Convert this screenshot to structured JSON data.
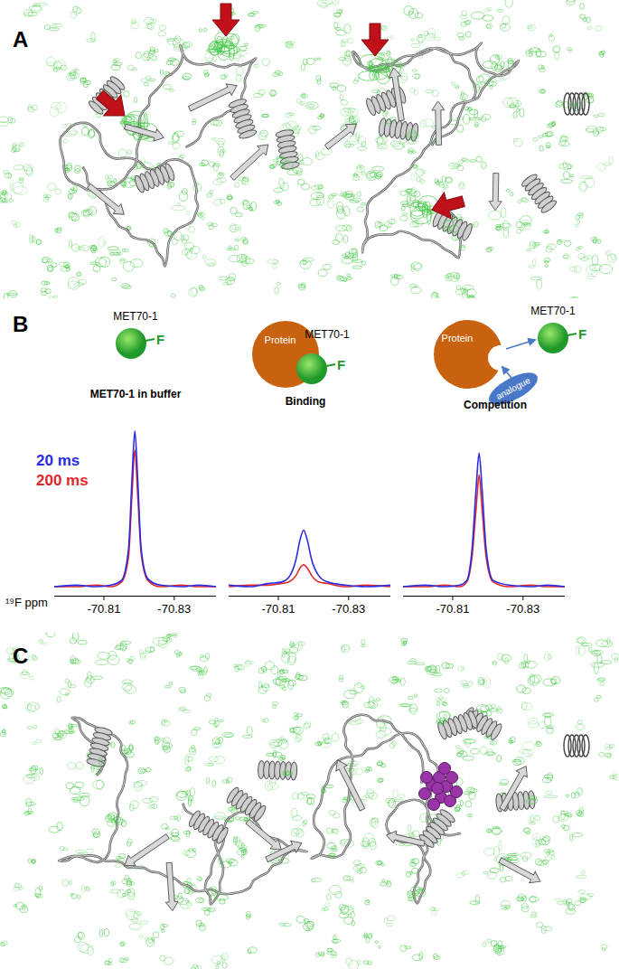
{
  "panel_labels": [
    "A",
    "B",
    "C"
  ],
  "chart_data": [
    {
      "type": "line",
      "title": "MET70-1 in buffer",
      "x_label": "¹⁹F ppm",
      "legend": "left",
      "tick_labels": "x",
      "x": [
        -70.796,
        -70.802,
        -70.808,
        -70.812,
        -70.815,
        -70.817,
        -70.818,
        -70.8188,
        -70.8196,
        -70.8206,
        -70.8225,
        -70.826,
        -70.832,
        -70.837,
        -70.842
      ],
      "series": [
        {
          "name": "20 ms",
          "color": "#2a2ae0",
          "values": [
            1,
            2,
            1,
            2,
            5,
            25,
            70,
            100,
            70,
            25,
            6,
            2,
            1,
            2,
            1
          ]
        },
        {
          "name": "200 ms",
          "color": "#e0262a",
          "values": [
            1,
            1,
            2,
            1,
            4,
            20,
            60,
            88,
            60,
            22,
            5,
            1,
            2,
            1,
            1
          ]
        }
      ],
      "xlim": [
        -70.796,
        -70.842
      ],
      "xticks": [
        -70.81,
        -70.83
      ],
      "ylim": [
        -5,
        110
      ]
    },
    {
      "type": "line",
      "title": "Binding",
      "tick_labels": "x",
      "x": [
        -70.796,
        -70.802,
        -70.807,
        -70.811,
        -70.813,
        -70.815,
        -70.8162,
        -70.8172,
        -70.8182,
        -70.8195,
        -70.8215,
        -70.824,
        -70.829,
        -70.835,
        -70.842
      ],
      "series": [
        {
          "name": "20 ms",
          "color": "#2a2ae0",
          "values": [
            2,
            1,
            3,
            4,
            7,
            18,
            31,
            37,
            31,
            18,
            8,
            4,
            2,
            1,
            2
          ]
        },
        {
          "name": "200 ms",
          "color": "#e0262a",
          "values": [
            1,
            2,
            2,
            3,
            4,
            8,
            13,
            15,
            13,
            8,
            4,
            3,
            1,
            2,
            1
          ]
        }
      ],
      "xlim": [
        -70.796,
        -70.842
      ],
      "xticks": [
        -70.81,
        -70.83
      ],
      "ylim": [
        -5,
        110
      ]
    },
    {
      "type": "line",
      "title": "Competition",
      "tick_labels": "x",
      "x": [
        -70.796,
        -70.802,
        -70.808,
        -70.812,
        -70.814,
        -70.8155,
        -70.8167,
        -70.8175,
        -70.8183,
        -70.8195,
        -70.8215,
        -70.826,
        -70.832,
        -70.837,
        -70.842
      ],
      "series": [
        {
          "name": "20 ms",
          "color": "#2a2ae0",
          "values": [
            1,
            2,
            1,
            2,
            5,
            25,
            65,
            86,
            65,
            25,
            5,
            2,
            1,
            2,
            1
          ]
        },
        {
          "name": "200 ms",
          "color": "#e0262a",
          "values": [
            1,
            1,
            2,
            1,
            4,
            20,
            52,
            72,
            52,
            20,
            4,
            1,
            2,
            1,
            1
          ]
        }
      ],
      "xlim": [
        -70.796,
        -70.842
      ],
      "xticks": [
        -70.81,
        -70.83
      ],
      "ylim": [
        -5,
        110
      ]
    }
  ],
  "schemes": [
    {
      "ligand": "MET70-1",
      "atom": "F"
    },
    {
      "protein": "Protein",
      "ligand": "MET70-1",
      "atom": "F"
    },
    {
      "protein": "Protein",
      "ligand": "MET70-1",
      "atom": "F",
      "competitor": "analogue"
    }
  ]
}
